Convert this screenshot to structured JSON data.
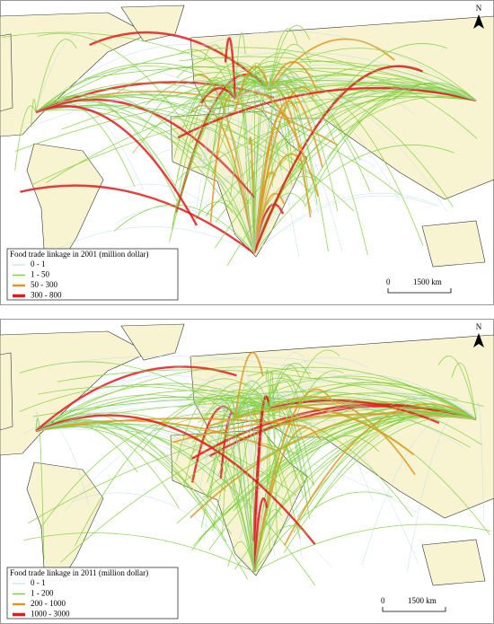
{
  "panels": [
    {
      "legend": {
        "title": "Food trade linkage  in 2001 (million dollar)",
        "entries": [
          {
            "label": "0 - 1",
            "color": "#b7d9ea"
          },
          {
            "label": "1 - 50",
            "color": "#7fcf3a"
          },
          {
            "label": "50 - 300",
            "color": "#e3961f"
          },
          {
            "label": "300 - 800",
            "color": "#e31a1c"
          }
        ]
      },
      "scale": {
        "zero": "0",
        "distance": "1500 km"
      },
      "north": "N"
    },
    {
      "legend": {
        "title": "Food trade linkage  in 2011 (million dollar)",
        "entries": [
          {
            "label": "0 - 1",
            "color": "#b7d9ea"
          },
          {
            "label": "1 - 200",
            "color": "#7fcf3a"
          },
          {
            "label": "200 - 1000",
            "color": "#e3961f"
          },
          {
            "label": "1000 - 3000",
            "color": "#e31a1c"
          }
        ]
      },
      "scale": {
        "zero": "0",
        "distance": "1500 km"
      },
      "north": "N"
    }
  ]
}
